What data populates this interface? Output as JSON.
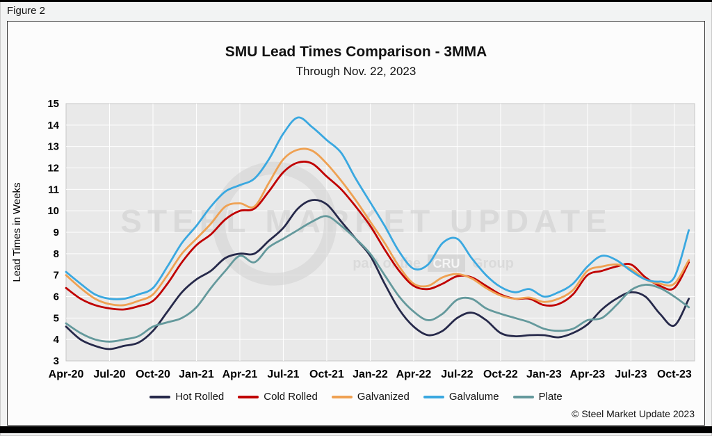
{
  "figure_label": "Figure 2",
  "title": "SMU Lead Times Comparison - 3MMA",
  "subtitle": "Through Nov. 22, 2023",
  "copyright": "© Steel Market Update 2023",
  "watermark": {
    "line1": "STEEL MARKET UPDATE",
    "line2_prefix": "part of the",
    "line2_box": "CRU",
    "line2_suffix": "Group"
  },
  "chart_data": {
    "type": "line",
    "title": "SMU Lead Times Comparison - 3MMA",
    "subtitle": "Through Nov. 22, 2023",
    "xlabel": "",
    "ylabel": "Lead Times in Weeks",
    "ylim": [
      3,
      15
    ],
    "y_ticks": [
      3,
      4,
      5,
      6,
      7,
      8,
      9,
      10,
      11,
      12,
      13,
      14,
      15
    ],
    "grid": true,
    "legend_position": "bottom",
    "tick_labels": [
      "Apr-20",
      "Jul-20",
      "Oct-20",
      "Jan-21",
      "Apr-21",
      "Jul-21",
      "Oct-21",
      "Jan-22",
      "Apr-22",
      "Jul-22",
      "Oct-22",
      "Jan-23",
      "Apr-23",
      "Jul-23",
      "Oct-23"
    ],
    "x": [
      "Apr-20",
      "May-20",
      "Jun-20",
      "Jul-20",
      "Aug-20",
      "Sep-20",
      "Oct-20",
      "Nov-20",
      "Dec-20",
      "Jan-21",
      "Feb-21",
      "Mar-21",
      "Apr-21",
      "May-21",
      "Jun-21",
      "Jul-21",
      "Aug-21",
      "Sep-21",
      "Oct-21",
      "Nov-21",
      "Dec-21",
      "Jan-22",
      "Feb-22",
      "Mar-22",
      "Apr-22",
      "May-22",
      "Jun-22",
      "Jul-22",
      "Aug-22",
      "Sep-22",
      "Oct-22",
      "Nov-22",
      "Dec-22",
      "Jan-23",
      "Feb-23",
      "Mar-23",
      "Apr-23",
      "May-23",
      "Jun-23",
      "Jul-23",
      "Aug-23",
      "Sep-23",
      "Oct-23",
      "Nov-23"
    ],
    "series": [
      {
        "name": "Hot Rolled",
        "color": "#26294A",
        "values": [
          4.6,
          4.0,
          3.7,
          3.55,
          3.7,
          3.85,
          4.4,
          5.3,
          6.2,
          6.8,
          7.2,
          7.8,
          8.0,
          8.0,
          8.6,
          9.2,
          10.1,
          10.5,
          10.3,
          9.5,
          8.7,
          7.9,
          6.6,
          5.4,
          4.6,
          4.2,
          4.4,
          5.0,
          5.25,
          4.9,
          4.3,
          4.15,
          4.2,
          4.2,
          4.1,
          4.3,
          4.7,
          5.4,
          5.9,
          6.2,
          6.0,
          5.2,
          4.65,
          5.9
        ]
      },
      {
        "name": "Cold Rolled",
        "color": "#C00000",
        "values": [
          6.4,
          5.9,
          5.6,
          5.45,
          5.4,
          5.55,
          5.8,
          6.6,
          7.6,
          8.4,
          8.9,
          9.6,
          10.0,
          10.1,
          10.9,
          11.8,
          12.25,
          12.2,
          11.6,
          11.0,
          10.2,
          9.3,
          8.2,
          7.2,
          6.5,
          6.35,
          6.6,
          6.95,
          6.9,
          6.5,
          6.1,
          5.9,
          5.9,
          5.6,
          5.65,
          6.1,
          7.0,
          7.2,
          7.4,
          7.5,
          6.9,
          6.5,
          6.4,
          7.6
        ]
      },
      {
        "name": "Galvanized",
        "color": "#EFA152",
        "values": [
          7.0,
          6.4,
          5.9,
          5.65,
          5.6,
          5.8,
          6.1,
          7.0,
          8.0,
          8.7,
          9.4,
          10.2,
          10.35,
          10.2,
          11.3,
          12.4,
          12.85,
          12.8,
          12.2,
          11.4,
          10.5,
          9.5,
          8.5,
          7.4,
          6.6,
          6.5,
          6.9,
          7.05,
          6.85,
          6.4,
          6.05,
          5.9,
          5.95,
          5.75,
          5.9,
          6.3,
          7.2,
          7.4,
          7.5,
          7.3,
          6.8,
          6.6,
          6.6,
          7.7
        ]
      },
      {
        "name": "Galvalume",
        "color": "#3AA8E0",
        "values": [
          7.15,
          6.6,
          6.1,
          5.9,
          5.9,
          6.1,
          6.4,
          7.4,
          8.5,
          9.3,
          10.2,
          10.9,
          11.2,
          11.5,
          12.4,
          13.6,
          14.35,
          13.9,
          13.3,
          12.7,
          11.5,
          10.4,
          9.3,
          8.1,
          7.3,
          7.5,
          8.5,
          8.7,
          7.8,
          7.0,
          6.45,
          6.2,
          6.35,
          6.0,
          6.2,
          6.6,
          7.4,
          7.9,
          7.7,
          7.2,
          6.8,
          6.7,
          6.9,
          9.1
        ]
      },
      {
        "name": "Plate",
        "color": "#64999C",
        "values": [
          4.75,
          4.3,
          4.0,
          3.9,
          4.0,
          4.15,
          4.6,
          4.8,
          5.0,
          5.5,
          6.4,
          7.2,
          7.9,
          7.6,
          8.3,
          8.7,
          9.1,
          9.5,
          9.75,
          9.3,
          8.7,
          8.0,
          7.0,
          6.0,
          5.3,
          4.9,
          5.2,
          5.85,
          5.9,
          5.45,
          5.2,
          5.0,
          4.8,
          4.5,
          4.4,
          4.5,
          4.9,
          5.0,
          5.6,
          6.3,
          6.55,
          6.4,
          6.0,
          5.5
        ]
      }
    ]
  }
}
